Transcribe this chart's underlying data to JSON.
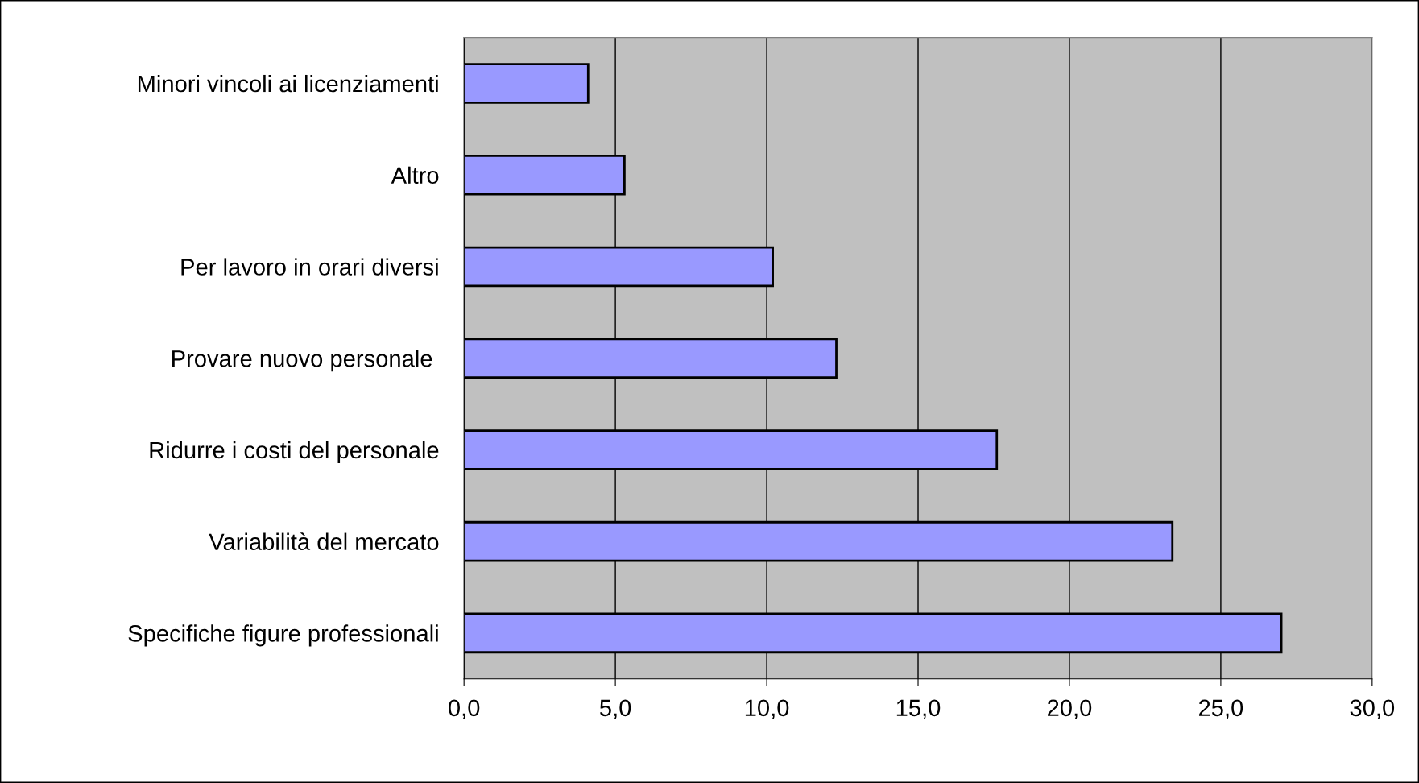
{
  "chart_data": {
    "type": "bar",
    "orientation": "horizontal",
    "categories": [
      "Minori vincoli ai licenziamenti",
      "Altro",
      "Per lavoro in orari diversi",
      "Provare nuovo personale ",
      "Ridurre i costi del personale",
      "Variabilità del mercato",
      "Specifiche figure professionali"
    ],
    "values": [
      4.1,
      5.3,
      10.2,
      12.3,
      17.6,
      23.4,
      27.0
    ],
    "color": "#9999ff",
    "xlim": [
      0,
      30
    ],
    "xticks": [
      {
        "value": 0,
        "label": "0,0"
      },
      {
        "value": 5,
        "label": "5,0"
      },
      {
        "value": 10,
        "label": "10,0"
      },
      {
        "value": 15,
        "label": "15,0"
      },
      {
        "value": 20,
        "label": "20,0"
      },
      {
        "value": 25,
        "label": "25,0"
      },
      {
        "value": 30,
        "label": "30,0"
      }
    ],
    "grid": "x",
    "legend": false
  }
}
